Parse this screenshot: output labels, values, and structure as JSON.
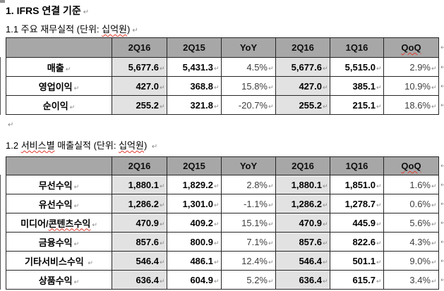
{
  "doc": {
    "heading": "1. IFRS 연결 기준",
    "paragraph_mark": "↵"
  },
  "colors": {
    "header_bg": "#a7a7a7",
    "highlight_bg": "#e2e2e2",
    "spellcheck": "#e03a2e",
    "pct_text": "#3f3f3f"
  },
  "sections": [
    {
      "title_parts": [
        {
          "text": "1.1 주요 재무실적 (단위: ",
          "misspelled": false
        },
        {
          "text": "십억원",
          "misspelled": true
        },
        {
          "text": ")",
          "misspelled": false
        }
      ],
      "table": {
        "headers": [
          {
            "label": "",
            "misspelled": false
          },
          {
            "label": "2Q16",
            "misspelled": false
          },
          {
            "label": "2Q15",
            "misspelled": false
          },
          {
            "label": "YoY",
            "misspelled": false
          },
          {
            "label": "2Q16",
            "misspelled": false
          },
          {
            "label": "1Q16",
            "misspelled": false
          },
          {
            "label": "QoQ",
            "misspelled": true
          }
        ],
        "highlight_cols": [
          0,
          3
        ],
        "pct_cols": [
          2,
          5
        ],
        "rows": [
          {
            "label_parts": [
              {
                "text": "매출",
                "misspelled": false
              }
            ],
            "values": [
              "5,677.6",
              "5,431.3",
              "4.5%",
              "5,677.6",
              "5,515.0",
              "2.9%"
            ]
          },
          {
            "label_parts": [
              {
                "text": "영업이익",
                "misspelled": false
              }
            ],
            "values": [
              "427.0",
              "368.8",
              "15.8%",
              "427.0",
              "385.1",
              "10.9%"
            ]
          },
          {
            "label_parts": [
              {
                "text": "순이익",
                "misspelled": false
              }
            ],
            "values": [
              "255.2",
              "321.8",
              "-20.7%",
              "255.2",
              "215.1",
              "18.6%"
            ]
          }
        ]
      }
    },
    {
      "title_parts": [
        {
          "text": "1.2 ",
          "misspelled": false
        },
        {
          "text": "서비스별",
          "misspelled": true
        },
        {
          "text": " 매출실적 (단위: ",
          "misspelled": false
        },
        {
          "text": "십억원",
          "misspelled": true
        },
        {
          "text": ") ",
          "misspelled": false
        }
      ],
      "table": {
        "headers": [
          {
            "label": "",
            "misspelled": false
          },
          {
            "label": "2Q16",
            "misspelled": false
          },
          {
            "label": "2Q15",
            "misspelled": false
          },
          {
            "label": "YoY",
            "misspelled": false
          },
          {
            "label": "2Q16",
            "misspelled": false
          },
          {
            "label": "1Q16",
            "misspelled": false
          },
          {
            "label": "QoQ",
            "misspelled": true
          }
        ],
        "highlight_cols": [
          0,
          3
        ],
        "pct_cols": [
          2,
          5
        ],
        "rows": [
          {
            "label_parts": [
              {
                "text": "무선수익",
                "misspelled": false
              }
            ],
            "values": [
              "1,880.1",
              "1,829.2",
              "2.8%",
              "1,880.1",
              "1,851.0",
              "1.6%"
            ]
          },
          {
            "label_parts": [
              {
                "text": "유선수익",
                "misspelled": false
              }
            ],
            "values": [
              "1,286.2",
              "1,301.0",
              "-1.1%",
              "1,286.2",
              "1,278.7",
              "0.6%"
            ]
          },
          {
            "label_parts": [
              {
                "text": "미디어/",
                "misspelled": false
              },
              {
                "text": "콘텐츠수익",
                "misspelled": true
              }
            ],
            "values": [
              "470.9",
              "409.2",
              "15.1%",
              "470.9",
              "445.9",
              "5.6%"
            ]
          },
          {
            "label_parts": [
              {
                "text": "금융수익",
                "misspelled": false
              }
            ],
            "values": [
              "857.6",
              "800.9",
              "7.1%",
              "857.6",
              "822.6",
              "4.3%"
            ]
          },
          {
            "label_parts": [
              {
                "text": "기타서비스수익 ",
                "misspelled": false
              }
            ],
            "values": [
              "546.4",
              "486.1",
              "12.4%",
              "546.4",
              "501.1",
              "9.0%"
            ]
          },
          {
            "label_parts": [
              {
                "text": "상품수익",
                "misspelled": false
              }
            ],
            "values": [
              "636.4",
              "604.9",
              "5.2%",
              "636.4",
              "615.7",
              "3.4%"
            ]
          }
        ]
      }
    }
  ]
}
